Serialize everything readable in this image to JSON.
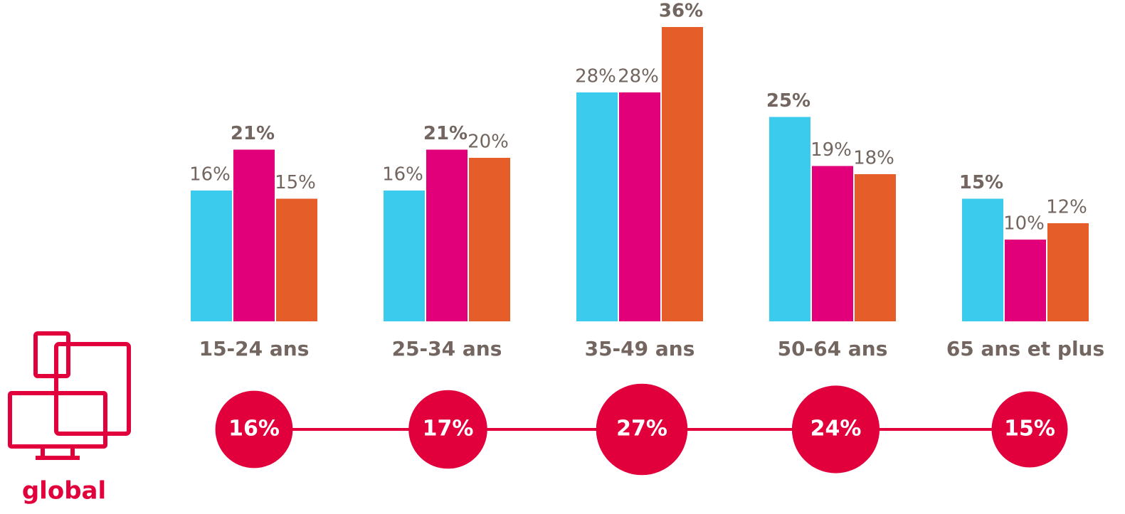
{
  "chart_data": {
    "type": "bar",
    "categories": [
      "15-24 ans",
      "25-34 ans",
      "35-49 ans",
      "50-64 ans",
      "65 ans et plus"
    ],
    "series": [
      {
        "color": "#3bcbec",
        "values": [
          16,
          16,
          28,
          25,
          15
        ],
        "value_labels": [
          "16%",
          "16%",
          "28%",
          "25%",
          "15%"
        ]
      },
      {
        "color": "#e2007a",
        "values": [
          21,
          21,
          28,
          19,
          10
        ],
        "value_labels": [
          "21%",
          "21%",
          "28%",
          "19%",
          "10%"
        ]
      },
      {
        "color": "#e55e2a",
        "values": [
          15,
          20,
          36,
          18,
          12
        ],
        "value_labels": [
          "15%",
          "20%",
          "36%",
          "18%",
          "12%"
        ]
      }
    ],
    "global": {
      "label": "global",
      "color": "#e2003c",
      "values": [
        16,
        17,
        27,
        24,
        15
      ],
      "value_labels": [
        "16%",
        "17%",
        "27%",
        "24%",
        "15%"
      ]
    }
  }
}
